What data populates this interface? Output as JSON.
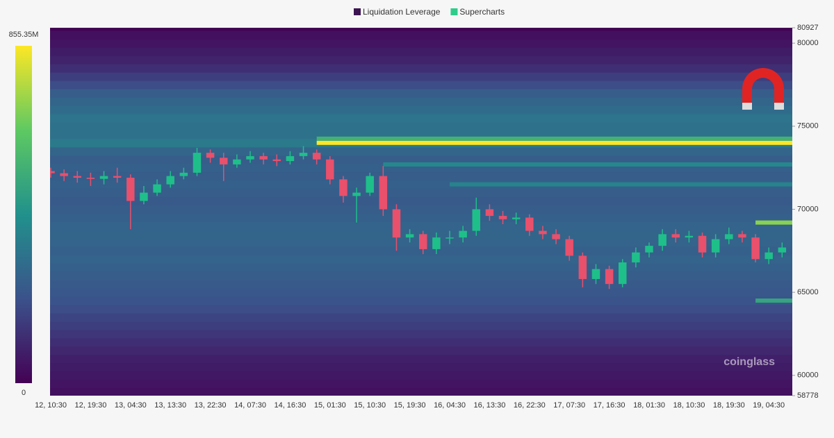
{
  "chart_data": {
    "type": "heatmap-candles",
    "categories": [
      "12, 10:30",
      null,
      null,
      "12, 19:30",
      null,
      null,
      "13, 04:30",
      null,
      null,
      "13, 13:30",
      null,
      null,
      "13, 22:30",
      null,
      null,
      "14, 07:30",
      null,
      null,
      "14, 16:30",
      null,
      null,
      "15, 01:30",
      null,
      null,
      "15, 10:30",
      null,
      null,
      "15, 19:30",
      null,
      null,
      "16, 04:30",
      null,
      null,
      "16, 13:30",
      null,
      null,
      "16, 22:30",
      null,
      null,
      "17, 07:30",
      null,
      null,
      "17, 16:30",
      null,
      null,
      "18, 01:30",
      null,
      null,
      "18, 10:30",
      null,
      null,
      "18, 19:30",
      null,
      null,
      "19, 04:30",
      null
    ],
    "ylim": [
      58778,
      80927
    ],
    "yticks": [
      58778,
      60000,
      65000,
      70000,
      75000,
      80000,
      80927
    ],
    "colorscale": [
      "#440154",
      "#3b528b",
      "#21918c",
      "#5ec962",
      "#fde725"
    ],
    "colorbar": {
      "lim": [
        0,
        855350000
      ],
      "ticks": [
        0,
        {
          "value": 855350000,
          "label": "855.35M"
        }
      ]
    },
    "watermark": "coinglass",
    "series": [
      {
        "name": "Liquidation Leverage",
        "color": "#3d1452",
        "bands": {
          "price": [
            59000,
            59500,
            60000,
            60500,
            61000,
            61500,
            62000,
            62500,
            63000,
            63500,
            64000,
            64500,
            65000,
            65500,
            66000,
            66500,
            67000,
            67500,
            68000,
            68500,
            69000,
            69500,
            70000,
            70500,
            71000,
            71500,
            72000,
            72500,
            73000,
            73500,
            74000,
            74500,
            75000,
            75500,
            76000,
            76500,
            77000,
            77500,
            78000,
            78500,
            79000,
            79500,
            80000,
            80500
          ],
          "value": [
            40000000,
            50000000,
            60000000,
            70000000,
            80000000,
            100000000,
            120000000,
            140000000,
            160000000,
            180000000,
            200000000,
            220000000,
            230000000,
            240000000,
            250000000,
            260000000,
            270000000,
            260000000,
            270000000,
            280000000,
            270000000,
            260000000,
            250000000,
            240000000,
            250000000,
            260000000,
            250000000,
            260000000,
            250000000,
            280000000,
            350000000,
            320000000,
            320000000,
            330000000,
            300000000,
            280000000,
            250000000,
            200000000,
            160000000,
            120000000,
            90000000,
            70000000,
            50000000,
            40000000
          ]
        },
        "lines": {
          "price": [
            74000,
            74000,
            74250,
            72700,
            71500,
            69200,
            64500
          ],
          "value": [
            350000000,
            855350000,
            550000000,
            400000000,
            380000000,
            700000000,
            500000000
          ],
          "start": [
            11,
            20,
            20,
            25,
            30,
            53,
            53
          ]
        }
      },
      {
        "name": "Supercharts",
        "color": "#2ecc8a",
        "up_color": "#1fbf8a",
        "down_color": "#e8506c",
        "open": [
          72300,
          72170,
          72000,
          71900,
          71830,
          72000,
          71900,
          70500,
          71000,
          71500,
          72000,
          72200,
          73400,
          73100,
          72700,
          73000,
          73200,
          73000,
          72900,
          73200,
          73400,
          73000,
          71800,
          70800,
          71000,
          72000,
          70000,
          68300,
          68500,
          67600,
          68300,
          68300,
          68700,
          70000,
          69600,
          69400,
          69500,
          68700,
          68500,
          68200,
          67200,
          65800,
          66400,
          65500,
          66800,
          67400,
          67800,
          68500,
          68300,
          68400,
          67400,
          68200,
          68500,
          68300,
          67000,
          67400
        ],
        "high": [
          72500,
          72400,
          72300,
          72200,
          72300,
          72500,
          72100,
          71400,
          71800,
          72300,
          72500,
          73700,
          73600,
          73400,
          73300,
          73500,
          73400,
          73300,
          73500,
          73800,
          73600,
          73200,
          72000,
          71300,
          72200,
          72600,
          70300,
          68800,
          68700,
          68600,
          68700,
          69000,
          70700,
          70300,
          69900,
          69800,
          69700,
          69000,
          68800,
          68400,
          67400,
          66700,
          66600,
          67000,
          67700,
          68000,
          68800,
          68800,
          68700,
          68600,
          68500,
          68900,
          68700,
          68500,
          67700,
          68000
        ],
        "low": [
          71900,
          71700,
          71600,
          71400,
          71500,
          71600,
          68800,
          70300,
          70800,
          71300,
          71800,
          72000,
          72800,
          71700,
          72500,
          72800,
          72700,
          72600,
          72700,
          73000,
          72700,
          71500,
          70400,
          69200,
          70800,
          69600,
          67500,
          68000,
          67300,
          67300,
          67900,
          68000,
          68400,
          69300,
          69100,
          69100,
          68400,
          68200,
          67900,
          66900,
          65300,
          65500,
          65200,
          65300,
          66500,
          67100,
          67500,
          68000,
          68000,
          67100,
          67100,
          67900,
          68000,
          66800,
          66700,
          67100
        ],
        "close": [
          72170,
          72000,
          71900,
          71830,
          72000,
          71900,
          70500,
          71000,
          71500,
          72000,
          72200,
          73400,
          73100,
          72700,
          73000,
          73200,
          73000,
          72900,
          73200,
          73400,
          73000,
          71800,
          70800,
          71000,
          72000,
          70000,
          68300,
          68500,
          67600,
          68300,
          68300,
          68700,
          70000,
          69600,
          69400,
          69500,
          68700,
          68500,
          68200,
          67200,
          65800,
          66400,
          65500,
          66800,
          67400,
          67800,
          68500,
          68300,
          68400,
          67400,
          68200,
          68500,
          68300,
          67000,
          67400,
          67700
        ]
      }
    ]
  }
}
